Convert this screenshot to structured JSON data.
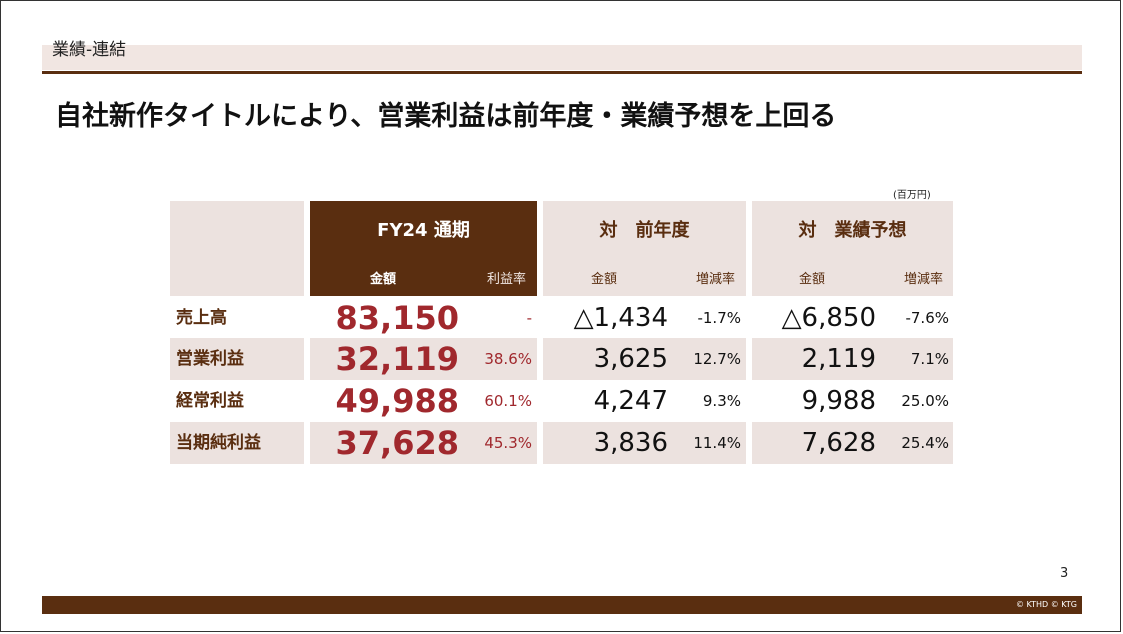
{
  "section": {
    "label": "業績-連結"
  },
  "headline": "自社新作タイトルにより、営業利益は前年度・業績予想を上回る",
  "unit": "(百万円)",
  "table": {
    "groups": [
      {
        "title": "FY24 通期",
        "sub_amount": "金額",
        "sub_rate": "利益率"
      },
      {
        "title": "対　前年度",
        "sub_amount": "金額",
        "sub_rate": "増減率"
      },
      {
        "title": "対　業績予想",
        "sub_amount": "金額",
        "sub_rate": "増減率"
      }
    ],
    "rows": [
      {
        "label": "売上高",
        "fy_amount": "83,150",
        "fy_rate": "-",
        "prev_amount": "△1,434",
        "prev_rate": "-1.7%",
        "fc_amount": "△6,850",
        "fc_rate": "-7.6%"
      },
      {
        "label": "営業利益",
        "fy_amount": "32,119",
        "fy_rate": "38.6%",
        "prev_amount": "3,625",
        "prev_rate": "12.7%",
        "fc_amount": "2,119",
        "fc_rate": "7.1%"
      },
      {
        "label": "経常利益",
        "fy_amount": "49,988",
        "fy_rate": "60.1%",
        "prev_amount": "4,247",
        "prev_rate": "9.3%",
        "fc_amount": "9,988",
        "fc_rate": "25.0%"
      },
      {
        "label": "当期純利益",
        "fy_amount": "37,628",
        "fy_rate": "45.3%",
        "prev_amount": "3,836",
        "prev_rate": "11.4%",
        "fc_amount": "7,628",
        "fc_rate": "25.4%"
      }
    ]
  },
  "footer": {
    "page_number": "3",
    "copyright": "© KTHD © KTG"
  },
  "colors": {
    "brand_brown": "#5a2e10",
    "highlight_red": "#a0282d",
    "cell_pink": "#ece2df"
  }
}
